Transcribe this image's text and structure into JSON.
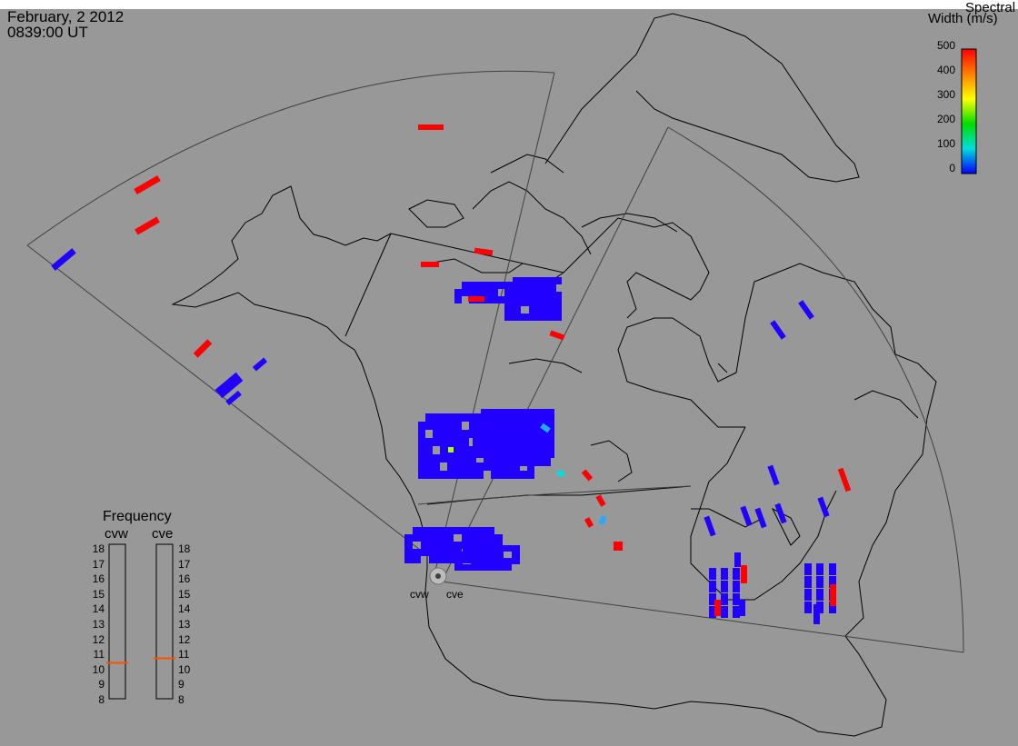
{
  "header": {
    "date": "February, 2 2012",
    "time": "0839:00 UT"
  },
  "colorbar": {
    "title_line1": "Spectral",
    "title_line2": "Width (m/s)",
    "ticks": [
      "500",
      "400",
      "300",
      "200",
      "100",
      "0"
    ],
    "colors": [
      "#ff0000",
      "#ff8000",
      "#ffff00",
      "#00dd00",
      "#00dddd",
      "#0000ff"
    ]
  },
  "frequency_panel": {
    "title": "Frequency",
    "radars": [
      {
        "name": "cvw",
        "value_mhz": 10.5
      },
      {
        "name": "cve",
        "value_mhz": 10.8
      }
    ],
    "scale": [
      "18",
      "17",
      "16",
      "15",
      "14",
      "13",
      "12",
      "11",
      "10",
      "9",
      "8"
    ]
  },
  "sites": [
    {
      "label": "cvw"
    },
    {
      "label": "cve"
    }
  ],
  "colors": {
    "background": "#989898",
    "blue": "#2200ff",
    "red": "#ff0000",
    "coast": "#000000",
    "fov": "#404040"
  }
}
